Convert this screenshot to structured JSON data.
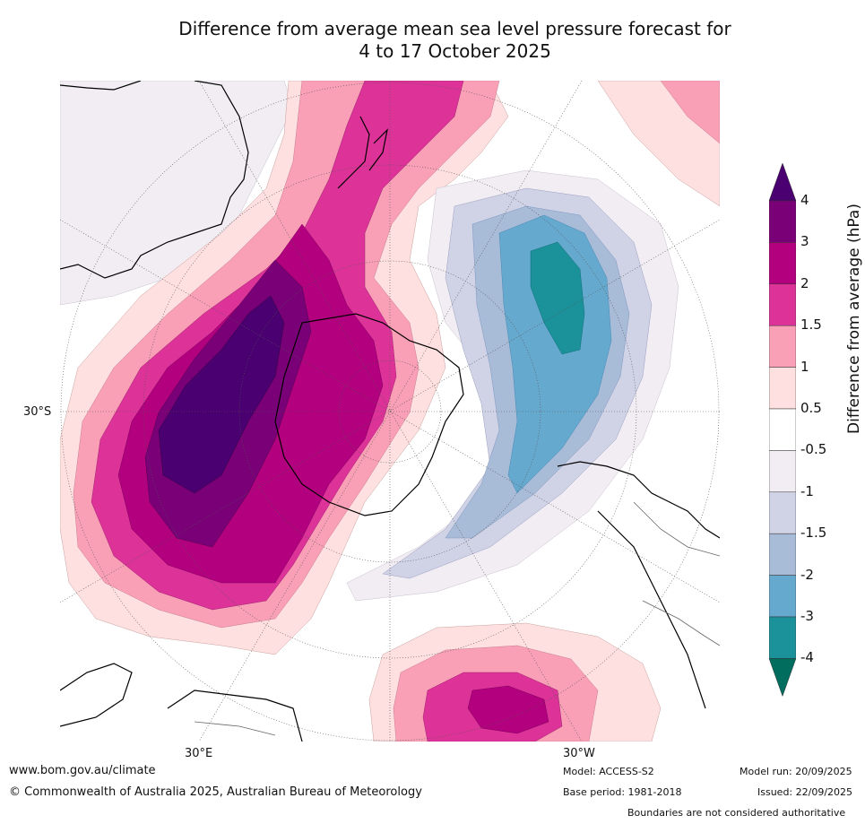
{
  "title_line1": "Difference from average mean sea level pressure forecast for",
  "title_line2": "4 to 17 October 2025",
  "map": {
    "lat_label": "30°S",
    "lon_label_left": "30°E",
    "lon_label_right": "30°W"
  },
  "colorbar": {
    "title": "Difference from average (hPa)",
    "ticks": [
      "4",
      "3",
      "2",
      "1.5",
      "1",
      "0.5",
      "-0.5",
      "-1",
      "-1.5",
      "-2",
      "-3",
      "-4"
    ],
    "colors": {
      "gt4": "#4a0070",
      "c3_4": "#7a0078",
      "c2_3": "#b3007e",
      "c15_2": "#dd3399",
      "c1_15": "#f9a0b6",
      "c05_1": "#fde0df",
      "c0": "#ffffff",
      "cm05_m1": "#f1edf3",
      "cm1_m15": "#d0d2e6",
      "cm15_m2": "#a8bcd8",
      "cm2_m3": "#66a9cf",
      "cm3_m4": "#1b9199",
      "lt4": "#006d5e"
    }
  },
  "footer": {
    "website": "www.bom.gov.au/climate",
    "copyright": "© Commonwealth of Australia 2025, Australian Bureau of Meteorology",
    "model": "Model: ACCESS-S2",
    "base_period": "Base period: 1981-2018",
    "model_run": "Model run: 20/09/2025",
    "issued": "Issued: 22/09/2025",
    "boundaries": "Boundaries are not considered authoritative"
  }
}
